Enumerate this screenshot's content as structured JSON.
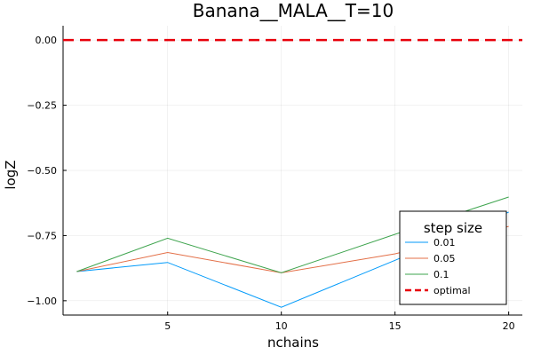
{
  "chart_data": {
    "type": "line",
    "title": "Banana__MALA__T=10",
    "xlabel": "nchains",
    "ylabel": "logZ",
    "xlim": [
      0.4,
      20.6
    ],
    "ylim": [
      -1.055,
      0.055
    ],
    "xticks": [
      5,
      10,
      15,
      20
    ],
    "xtick_labels": [
      "5",
      "10",
      "15",
      "20"
    ],
    "yticks": [
      0.0,
      -0.25,
      -0.5,
      -0.75,
      -1.0
    ],
    "ytick_labels": [
      "0.00",
      "−0.25",
      "−0.50",
      "−0.75",
      "−1.00"
    ],
    "grid": true,
    "legend": {
      "title": "step size",
      "placement": "bottom-right"
    },
    "x": [
      1,
      5,
      10,
      15,
      20
    ],
    "series": [
      {
        "name": "0.01",
        "color": "#009AFA",
        "values": [
          -0.888,
          -0.853,
          -1.025,
          -0.845,
          -0.66
        ]
      },
      {
        "name": "0.05",
        "color": "#E36F47",
        "values": [
          -0.888,
          -0.815,
          -0.893,
          -0.82,
          -0.715
        ]
      },
      {
        "name": "0.1",
        "color": "#3EA44E",
        "values": [
          -0.888,
          -0.76,
          -0.893,
          -0.745,
          -0.602
        ]
      }
    ],
    "reference": {
      "name": "optimal",
      "color": "#E8000B",
      "value": 0.0,
      "style": "dashed"
    }
  }
}
